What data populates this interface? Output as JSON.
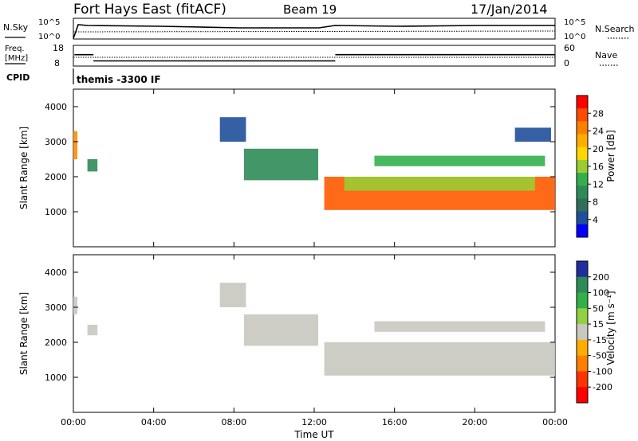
{
  "header": {
    "title": "Fort Hays East (fitACF)",
    "beam": "Beam 19",
    "date": "17/Jan/2014"
  },
  "summary": {
    "nsky_label": "N.Sky",
    "nsky_ticks": [
      "10^5",
      "10^0"
    ],
    "nsearch_label": "N.Search",
    "nsearch_ticks": [
      "10^5",
      "10^0"
    ],
    "freq_label_1": "Freq.",
    "freq_label_2": "[MHz]",
    "freq_ticks": [
      "18",
      "8"
    ],
    "nave_label": "Nave",
    "nave_ticks": [
      "60",
      "0"
    ],
    "cpid_label": "CPID",
    "cpid_value": "themis -3300 IF",
    "freq_steps": [
      {
        "t0": 0.05,
        "t1": 1.0,
        "mhz": 13.5
      },
      {
        "t0": 1.0,
        "t1": 13.05,
        "mhz": 10.5
      },
      {
        "t0": 13.05,
        "t1": 24.0,
        "mhz": 13.5
      }
    ]
  },
  "chart_data": [
    {
      "type": "heatmap",
      "name": "power",
      "ylabel": "Slant Range [km]",
      "ylim": [
        0,
        4500
      ],
      "yticks": [
        "1000",
        "2000",
        "3000",
        "4000"
      ],
      "xlim": [
        0,
        24
      ],
      "colorbar_label": "Power [dB]",
      "colorbar_ticks": [
        "28",
        "24",
        "20",
        "16",
        "12",
        "8",
        "4"
      ],
      "colorbar_colors": [
        "#ff0000",
        "#ff4a00",
        "#ff7f00",
        "#ffae00",
        "#ffd700",
        "#9acd32",
        "#33b04b",
        "#2e8b57",
        "#2f6f5a",
        "#1f4f9a",
        "#0000ff"
      ],
      "regions": [
        {
          "x": [
            -0.05,
            0.2
          ],
          "y": [
            2500,
            3300
          ],
          "color": "#ff8c00"
        },
        {
          "x": [
            0.7,
            1.2
          ],
          "y": [
            2150,
            2500
          ],
          "color": "#2e8b57"
        },
        {
          "x": [
            7.3,
            8.6
          ],
          "y": [
            3000,
            3700
          ],
          "color": "#1f4f9a"
        },
        {
          "x": [
            8.5,
            12.2
          ],
          "y": [
            1900,
            2800
          ],
          "color": "#2e8b57"
        },
        {
          "x": [
            12.5,
            24
          ],
          "y": [
            1050,
            2000
          ],
          "color": "#ff5a00"
        },
        {
          "x": [
            13.5,
            23
          ],
          "y": [
            1600,
            2000
          ],
          "color": "#9acd32"
        },
        {
          "x": [
            15,
            23.5
          ],
          "y": [
            2300,
            2600
          ],
          "color": "#33b04b"
        },
        {
          "x": [
            22,
            23.8
          ],
          "y": [
            3000,
            3400
          ],
          "color": "#1f4f9a"
        }
      ]
    },
    {
      "type": "heatmap",
      "name": "velocity",
      "ylabel": "Slant Range [km]",
      "xlabel": "Time UT",
      "ylim": [
        0,
        4500
      ],
      "yticks": [
        "1000",
        "2000",
        "3000",
        "4000"
      ],
      "xlim": [
        0,
        24
      ],
      "xticks": [
        "00:00",
        "04:00",
        "08:00",
        "12:00",
        "16:00",
        "20:00",
        "00:00"
      ],
      "colorbar_label": "Velocity [m s⁻¹]",
      "colorbar_ticks": [
        "200",
        "100",
        "50",
        "15",
        "-15",
        "-50",
        "-100",
        "-200"
      ],
      "colorbar_colors": [
        "#1f2fa0",
        "#2e8b57",
        "#33b04b",
        "#8fd13f",
        "#c8c8c0",
        "#ffae00",
        "#ff7f00",
        "#ff3300",
        "#ff0000"
      ],
      "regions": [
        {
          "x": [
            -0.05,
            0.2
          ],
          "y": [
            2800,
            3300
          ],
          "color": "#c8c8c0"
        },
        {
          "x": [
            0.7,
            1.2
          ],
          "y": [
            2200,
            2500
          ],
          "color": "#c8c8c0"
        },
        {
          "x": [
            7.3,
            8.6
          ],
          "y": [
            3000,
            3700
          ],
          "color": "#c8c8c0"
        },
        {
          "x": [
            8.5,
            12.2
          ],
          "y": [
            1900,
            2800
          ],
          "color": "#c8c8c0"
        },
        {
          "x": [
            12.5,
            24
          ],
          "y": [
            1050,
            2000
          ],
          "color": "#c8c8c0"
        },
        {
          "x": [
            15,
            23.5
          ],
          "y": [
            2300,
            2600
          ],
          "color": "#c8c8c0"
        }
      ]
    }
  ]
}
